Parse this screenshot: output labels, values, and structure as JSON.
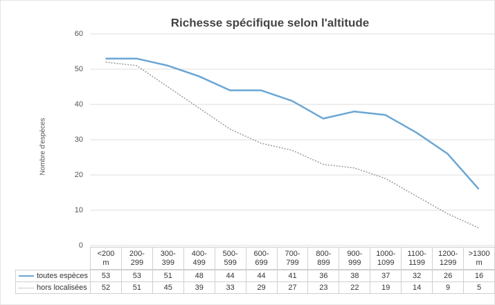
{
  "chart_data": {
    "type": "line",
    "title": "Richesse spécifique selon l'altitude",
    "ylabel": "Nombre d'espèces",
    "categories": [
      "<200 m",
      "200-299",
      "300-399",
      "400-499",
      "500-599",
      "600-699",
      "700-799",
      "800-899",
      "900-999",
      "1000-1099",
      "1100-1199",
      "1200-1299",
      ">1300 m"
    ],
    "series": [
      {
        "name": "toutes espèces",
        "color": "#6aa6d4",
        "style": "solid",
        "values": [
          53,
          53,
          51,
          48,
          44,
          44,
          41,
          36,
          38,
          37,
          32,
          26,
          16
        ]
      },
      {
        "name": "hors localisées",
        "color": "#9a9a9a",
        "style": "dotted",
        "values": [
          52,
          51,
          45,
          39,
          33,
          29,
          27,
          23,
          22,
          19,
          14,
          9,
          5
        ]
      }
    ],
    "ylim": [
      0,
      60
    ],
    "yticks": [
      0,
      10,
      20,
      30,
      40,
      50,
      60
    ],
    "grid": true
  }
}
